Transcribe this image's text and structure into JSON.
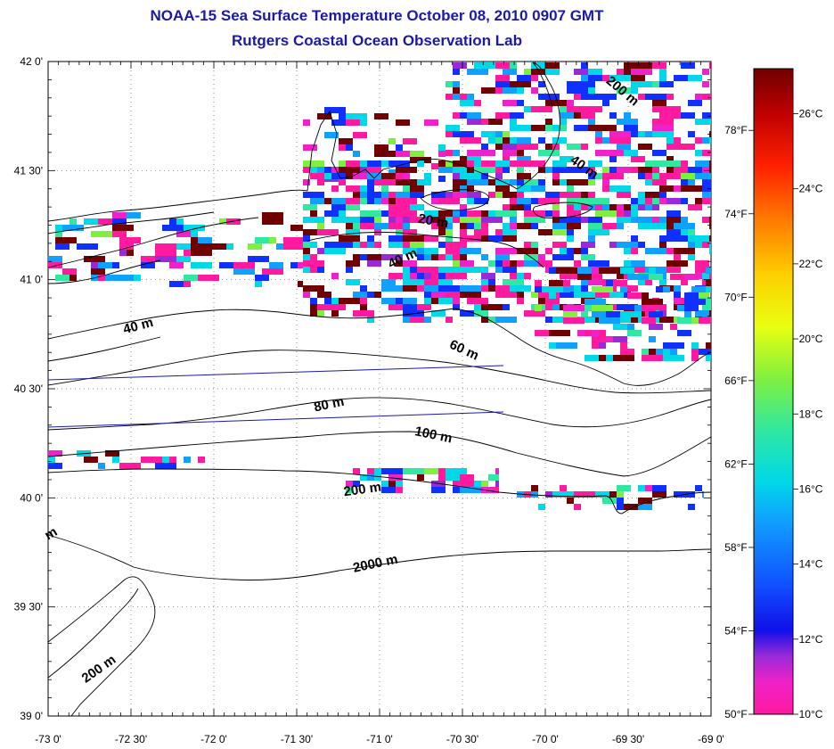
{
  "header": {
    "title": "NOAA-15 Sea Surface Temperature October 08, 2010 0907 GMT",
    "subtitle": "Rutgers Coastal Ocean Observation Lab"
  },
  "map": {
    "lon_range": [
      -73,
      -69
    ],
    "lat_range": [
      39,
      42
    ],
    "lon_ticks": [
      "-73 0'",
      "-72 30'",
      "-72 0'",
      "-71 30'",
      "-71 0'",
      "-70 30'",
      "-70 0'",
      "-69 30'",
      "-69 0'"
    ],
    "lat_ticks": [
      "42 0'",
      "41 30'",
      "41 0'",
      "40 30'",
      "40 0'",
      "39 30'",
      "39 0'"
    ],
    "grid": "dotted",
    "contour_labels": [
      {
        "text": "200 m",
        "lon": -69.55,
        "lat": 41.85,
        "rot": 40
      },
      {
        "text": "40 m",
        "lon": -69.78,
        "lat": 41.5,
        "rot": 35
      },
      {
        "text": "20 m",
        "lon": -70.68,
        "lat": 41.25,
        "rot": 10
      },
      {
        "text": "40 m",
        "lon": -70.85,
        "lat": 41.08,
        "rot": -25
      },
      {
        "text": "40 m",
        "lon": -72.45,
        "lat": 40.77,
        "rot": -15
      },
      {
        "text": "60 m",
        "lon": -70.5,
        "lat": 40.66,
        "rot": 25
      },
      {
        "text": "80 m",
        "lon": -71.3,
        "lat": 40.41,
        "rot": -12
      },
      {
        "text": "100 m",
        "lon": -70.68,
        "lat": 40.27,
        "rot": 12
      },
      {
        "text": "200 m",
        "lon": -71.1,
        "lat": 40.02,
        "rot": -8
      },
      {
        "text": "2000 m",
        "lon": -71.02,
        "lat": 39.68,
        "rot": -12
      },
      {
        "text": "200 m",
        "lon": -72.68,
        "lat": 39.2,
        "rot": -35
      },
      {
        "text": "m",
        "lon": -72.97,
        "lat": 39.82,
        "rot": -30
      }
    ]
  },
  "colorbar": {
    "celsius_ticks": [
      "26°C",
      "24°C",
      "22°C",
      "20°C",
      "18°C",
      "16°C",
      "14°C",
      "12°C",
      "10°C"
    ],
    "fahrenheit_ticks": [
      "78°F",
      "74°F",
      "70°F",
      "66°F",
      "62°F",
      "58°F",
      "54°F",
      "50°F"
    ],
    "range_celsius": [
      10,
      27.2
    ]
  }
}
